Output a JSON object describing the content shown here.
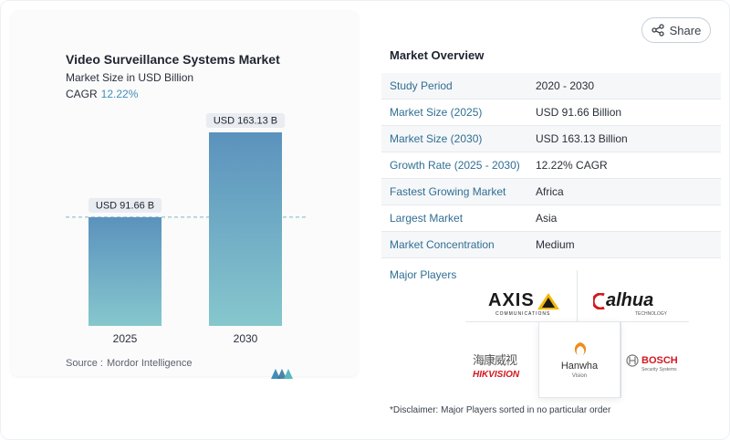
{
  "chart": {
    "title": "Video Surveillance Systems Market",
    "subtitle": "Market Size in USD Billion",
    "cagr_label": "CAGR",
    "cagr_value": "12.22%",
    "source_label": "Source :",
    "source_name": "Mordor Intelligence",
    "bar_labels": [
      "USD 91.66 B",
      "USD 163.13 B"
    ],
    "colors": {
      "bar_top": "#5b92bd",
      "bar_bottom": "#86c7cd",
      "label_bg": "#e9ecf0",
      "dash": "#7fb6c4"
    }
  },
  "chart_data": {
    "type": "bar",
    "categories": [
      "2025",
      "2030"
    ],
    "values": [
      91.66,
      163.13
    ],
    "title": "Video Surveillance Systems Market",
    "subtitle": "Market Size in USD Billion",
    "ylabel": "",
    "ylim": [
      0,
      163.13
    ],
    "data_labels": [
      "USD 91.66 B",
      "USD 163.13 B"
    ],
    "reference_line": 91.66,
    "grid": false
  },
  "share": {
    "label": "Share",
    "icon": "share-icon"
  },
  "overview": {
    "title": "Market Overview",
    "rows": [
      {
        "key": "Study Period",
        "value": "2020 - 2030"
      },
      {
        "key": "Market Size (2025)",
        "value": "USD 91.66 Billion"
      },
      {
        "key": "Market Size (2030)",
        "value": "USD 163.13 Billion"
      },
      {
        "key": "Growth Rate (2025 - 2030)",
        "value": "12.22% CAGR"
      },
      {
        "key": "Fastest Growing Market",
        "value": "Africa"
      },
      {
        "key": "Largest Market",
        "value": "Asia"
      },
      {
        "key": "Market Concentration",
        "value": "Medium"
      }
    ],
    "players_label": "Major Players"
  },
  "players": {
    "axis": {
      "name": "AXIS",
      "sub": "COMMUNICATIONS"
    },
    "dahua": {
      "name": "alhua",
      "sub": "TECHNOLOGY"
    },
    "hikvision": {
      "name": "HIKVISION",
      "cn": "海康威视"
    },
    "hanwha": {
      "name": "Hanwha",
      "sub": "Vision"
    },
    "bosch": {
      "name": "BOSCH",
      "sub": "Security Systems"
    }
  },
  "disclaimer": "*Disclaimer: Major Players sorted in no particular order"
}
